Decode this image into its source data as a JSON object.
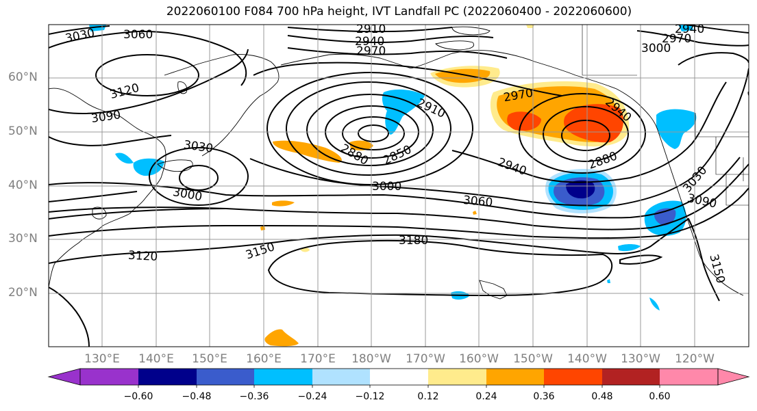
{
  "title": "2022060100 F084 700 hPa height, IVT Landfall PC (2022060400 - 2022060600)",
  "map": {
    "lat_labels": [
      "60°N",
      "50°N",
      "40°N",
      "30°N",
      "20°N"
    ],
    "lon_labels": [
      "130°E",
      "140°E",
      "150°E",
      "160°E",
      "170°E",
      "180°W",
      "170°W",
      "160°W",
      "150°W",
      "140°W",
      "130°W",
      "120°W"
    ],
    "contour_labels": [
      "3030",
      "3060",
      "2910",
      "2940",
      "2970",
      "2940",
      "2970",
      "3000",
      "3120",
      "3090",
      "3030",
      "2970",
      "2910",
      "2940",
      "3030",
      "2880",
      "2850",
      "2940",
      "2880",
      "3000",
      "3000",
      "3030",
      "3060",
      "3090",
      "3150",
      "3180",
      "3120",
      "3150"
    ]
  },
  "colorbar": {
    "tick_labels": [
      "−0.60",
      "−0.48",
      "−0.36",
      "−0.24",
      "−0.12",
      "0.12",
      "0.24",
      "0.36",
      "0.48",
      "0.60"
    ],
    "colors": [
      "#9932cc",
      "#00008b",
      "#3a5ccc",
      "#00bfff",
      "#b0e2ff",
      "#ffffff",
      "#ffeb8c",
      "#ffa500",
      "#ff4500",
      "#b22222",
      "#ff88aa"
    ]
  }
}
